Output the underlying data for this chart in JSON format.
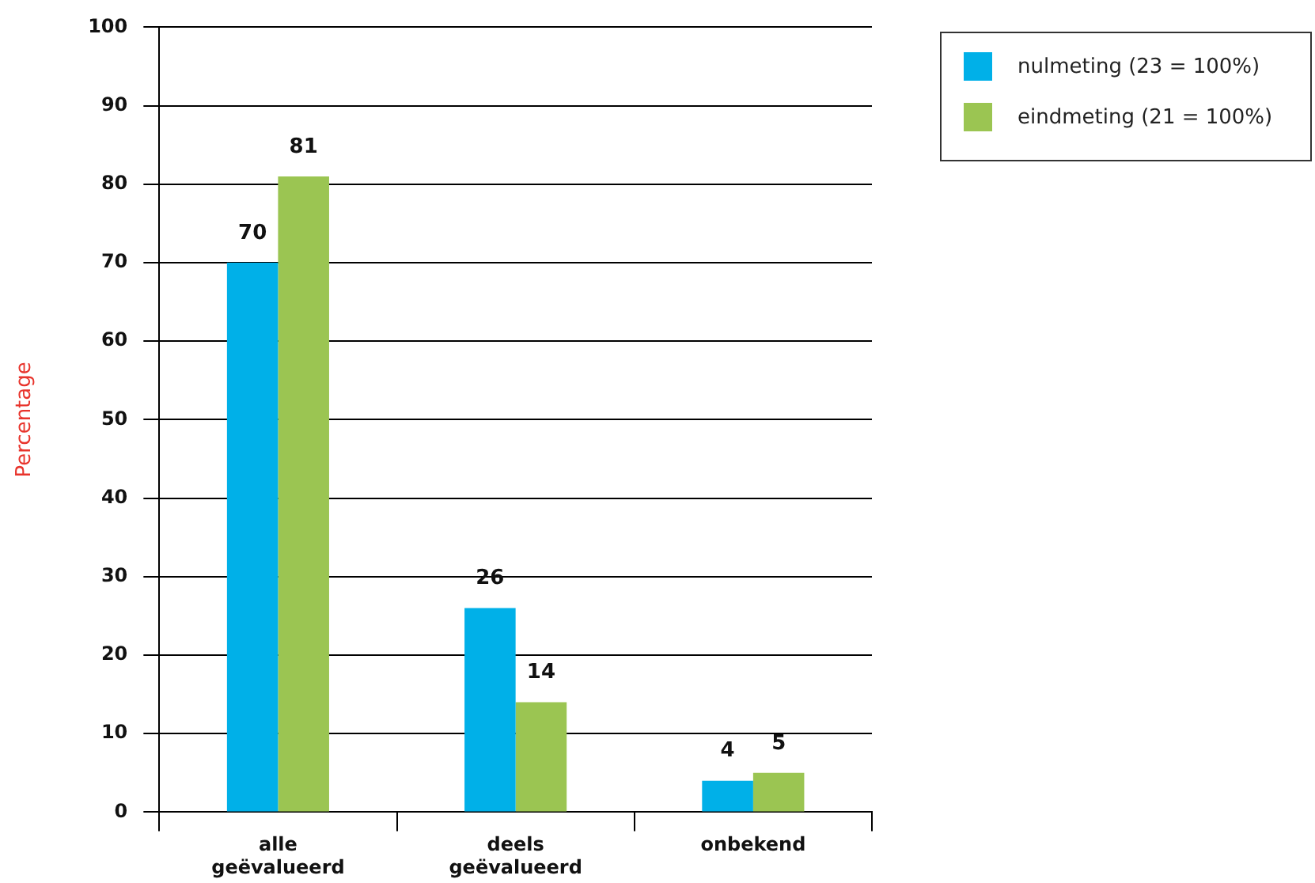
{
  "chart_data": {
    "type": "bar",
    "ylabel": "Percentage",
    "categories": [
      "alle geëvalueerd",
      "deels geëvalueerd",
      "onbekend"
    ],
    "series": [
      {
        "name": "nulmeting (23 = 100%)",
        "color": "#00b0e8",
        "values": [
          70,
          26,
          4
        ]
      },
      {
        "name": "eindmeting (21 = 100%)",
        "color": "#9bc552",
        "values": [
          81,
          14,
          5
        ]
      }
    ],
    "ylim": [
      0,
      100
    ],
    "yticks": [
      0,
      10,
      20,
      30,
      40,
      50,
      60,
      70,
      80,
      90,
      100
    ],
    "grid": "y",
    "legend": "top right",
    "data_labels": true
  }
}
